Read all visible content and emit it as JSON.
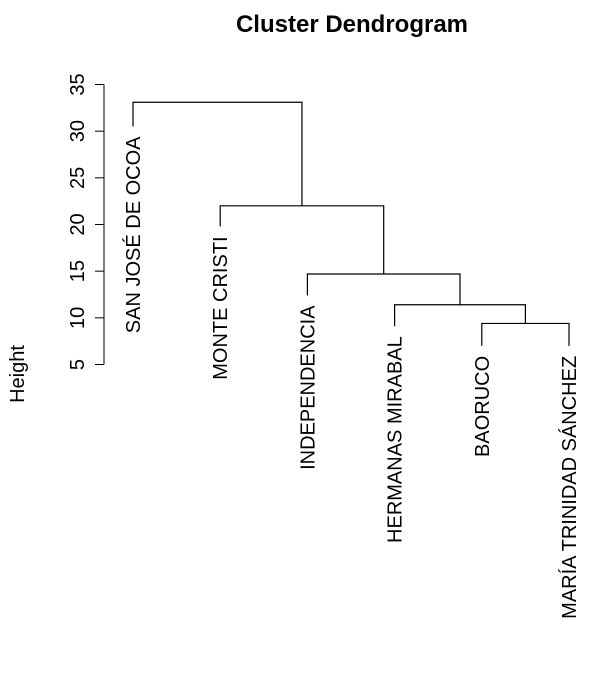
{
  "chart_data": {
    "type": "dendrogram",
    "title": "Cluster Dendrogram",
    "ylabel": "Height",
    "xlabel": "",
    "ylim": [
      5,
      35
    ],
    "yticks": [
      5,
      10,
      15,
      20,
      25,
      30,
      35
    ],
    "ytick_labels": [
      "5",
      "10",
      "15",
      "20",
      "25",
      "30",
      "35"
    ],
    "leaves": [
      {
        "label": "SAN JOSÉ DE OCOA",
        "leaf_top": 30.5
      },
      {
        "label": "MONTE CRISTI",
        "leaf_top": 19.8
      },
      {
        "label": "INDEPENDENCIA",
        "leaf_top": 12.4
      },
      {
        "label": "HERMANAS MIRABAL",
        "leaf_top": 9.1
      },
      {
        "label": "BAORUCO",
        "leaf_top": 7.0
      },
      {
        "label": "MARÍA TRINIDAD SÁNCHEZ",
        "leaf_top": 7.0
      }
    ],
    "merges": [
      {
        "left": "leaf:4",
        "right": "leaf:5",
        "height": 9.4
      },
      {
        "left": "leaf:3",
        "right": "merge:0",
        "height": 11.4
      },
      {
        "left": "leaf:2",
        "right": "merge:1",
        "height": 14.7
      },
      {
        "left": "leaf:1",
        "right": "merge:2",
        "height": 22.0
      },
      {
        "left": "leaf:0",
        "right": "merge:3",
        "height": 33.1
      }
    ]
  }
}
